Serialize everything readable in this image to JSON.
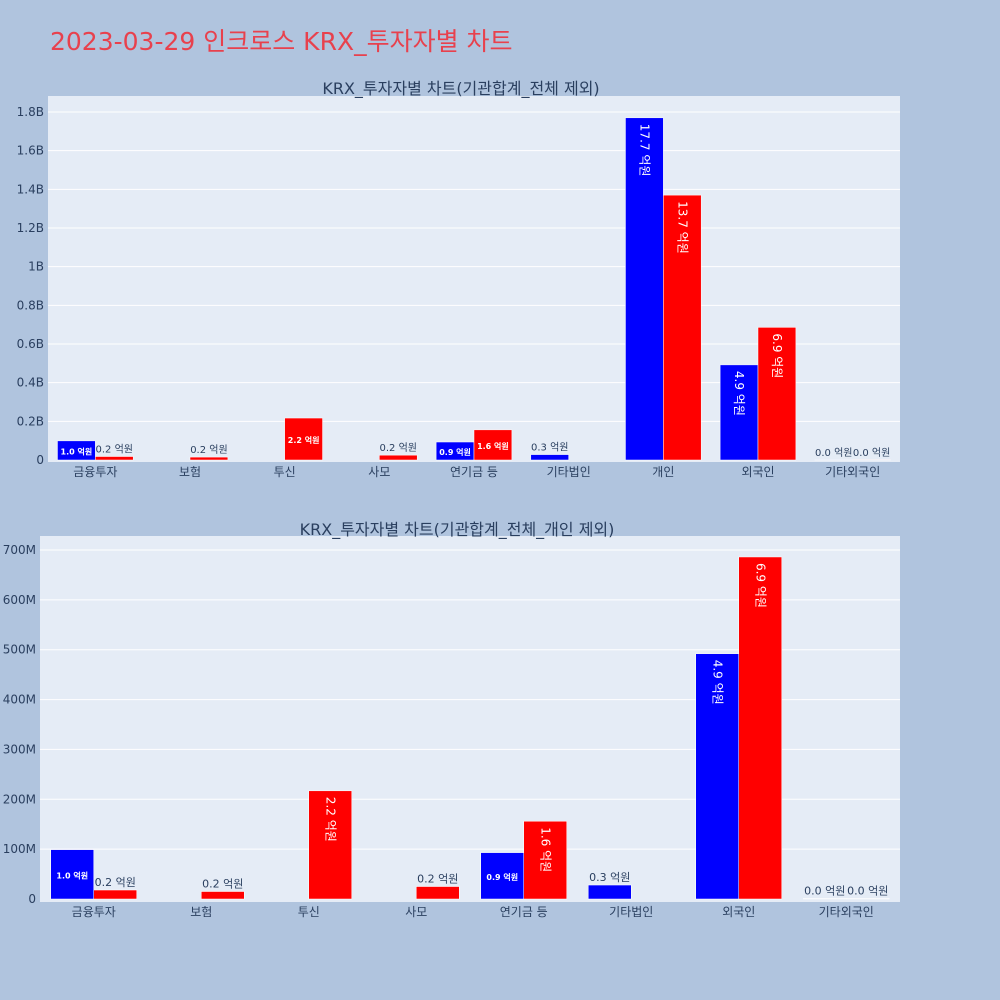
{
  "page_title": "2023-03-29 인크로스 KRX_투자자별 차트",
  "colors": {
    "series_1": "#0000ff",
    "series_2": "#ff0000",
    "background": "#b0c4de",
    "plot_bg": "#e5ecf6",
    "title": "#e8414d"
  },
  "chart_data": [
    {
      "type": "bar",
      "title": "KRX_투자자별 차트(기관합계_전체 제외)",
      "categories": [
        "금융투자",
        "보험",
        "투신",
        "사모",
        "연기금 등",
        "기타법인",
        "개인",
        "외국인",
        "기타외국인"
      ],
      "series": [
        {
          "color": "#0000ff",
          "values": [
            99000000,
            0,
            0,
            0,
            93000000,
            28000000,
            1770000000,
            492000000,
            1000000
          ],
          "labels": [
            "1.0 억원",
            "",
            "",
            "",
            "0.9 억원",
            "0.3 억원",
            "17.7 억원",
            "4.9 억원",
            "0.0 억원"
          ]
        },
        {
          "color": "#ff0000",
          "values": [
            18000000,
            15000000,
            217000000,
            25000000,
            156000000,
            0,
            1370000000,
            686000000,
            1000000
          ],
          "labels": [
            "0.2 억원",
            "0.2 억원",
            "2.2 억원",
            "0.2 억원",
            "1.6 억원",
            "",
            "13.7 억원",
            "6.9 억원",
            "0.0 억원"
          ]
        }
      ],
      "y_ticks": [
        0,
        200000000,
        400000000,
        600000000,
        800000000,
        1000000000,
        1200000000,
        1400000000,
        1600000000,
        1800000000
      ],
      "y_tick_labels": [
        "0",
        "0.2B",
        "0.4B",
        "0.6B",
        "0.8B",
        "1B",
        "1.2B",
        "1.4B",
        "1.6B",
        "1.8B"
      ],
      "ylim": [
        0,
        1800000000
      ],
      "grid": true
    },
    {
      "type": "bar",
      "title": "KRX_투자자별 차트(기관합계_전체_개인 제외)",
      "categories": [
        "금융투자",
        "보험",
        "투신",
        "사모",
        "연기금 등",
        "기타법인",
        "외국인",
        "기타외국인"
      ],
      "series": [
        {
          "color": "#0000ff",
          "values": [
            99000000,
            0,
            0,
            0,
            93000000,
            28000000,
            492000000,
            1000000
          ],
          "labels": [
            "1.0 억원",
            "",
            "",
            "",
            "0.9 억원",
            "0.3 억원",
            "4.9 억원",
            "0.0 억원"
          ]
        },
        {
          "color": "#ff0000",
          "values": [
            18000000,
            15000000,
            217000000,
            25000000,
            156000000,
            0,
            686000000,
            1000000
          ],
          "labels": [
            "0.2 억원",
            "0.2 억원",
            "2.2 억원",
            "0.2 억원",
            "1.6 억원",
            "",
            "6.9 억원",
            "0.0 억원"
          ]
        }
      ],
      "y_ticks": [
        0,
        100000000,
        200000000,
        300000000,
        400000000,
        500000000,
        600000000,
        700000000
      ],
      "y_tick_labels": [
        "0",
        "100M",
        "200M",
        "300M",
        "400M",
        "500M",
        "600M",
        "700M"
      ],
      "ylim": [
        0,
        700000000
      ],
      "grid": true
    }
  ]
}
